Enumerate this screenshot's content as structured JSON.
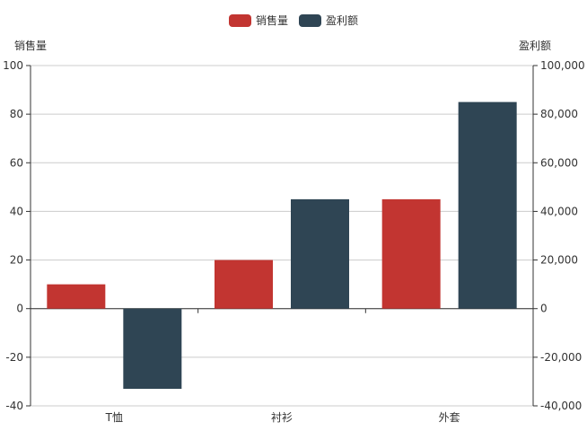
{
  "chart_data": {
    "type": "bar",
    "categories": [
      "T恤",
      "衬衫",
      "外套"
    ],
    "series": [
      {
        "name": "销售量",
        "axis": "left",
        "values": [
          10,
          20,
          45
        ],
        "color": "#c23531"
      },
      {
        "name": "盈利额",
        "axis": "right",
        "values": [
          -33000,
          45000,
          85000
        ],
        "color": "#2f4554"
      }
    ],
    "y_left": {
      "name": "销售量",
      "range": [
        -40,
        100
      ],
      "ticks": [
        "100",
        "80",
        "60",
        "40",
        "20",
        "0",
        "-20",
        "-40"
      ]
    },
    "y_right": {
      "name": "盈利额",
      "range": [
        -40000,
        100000
      ],
      "ticks": [
        "100,000",
        "80,000",
        "60,000",
        "40,000",
        "20,000",
        "0",
        "-20,000",
        "-40,000"
      ]
    },
    "legend_position": "top-center",
    "grid": true
  }
}
